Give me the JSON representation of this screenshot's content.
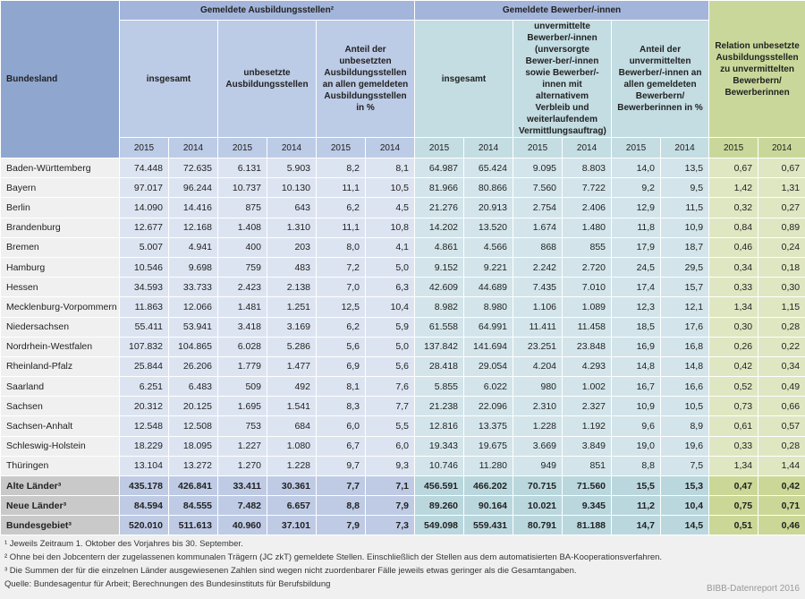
{
  "header": {
    "bundesland": "Bundesland",
    "group1": "Gemeldete Ausbildungsstellen²",
    "group2": "Gemeldete Bewerber/-innen",
    "group3": "Relation unbesetzte Ausbildungsstellen zu unvermittelten Bewerbern/ Bewerberinnen",
    "sub": [
      "insgesamt",
      "unbesetzte Ausbildungsstellen",
      "Anteil der unbesetzten Ausbildungsstellen an allen gemeldeten Ausbildungsstellen in %",
      "insgesamt",
      "unvermittelte Bewerber/-innen (unversorgte Bewer-ber/-innen sowie Bewerber/-innen mit alternativem Verbleib und weiterlaufendem Vermittlungsauftrag)",
      "Anteil der unvermittelten Bewerber/-innen an allen gemeldeten Bewerbern/ Bewerberinnen in %"
    ],
    "years": [
      "2015",
      "2014",
      "2015",
      "2014",
      "2015",
      "2014",
      "2015",
      "2014",
      "2015",
      "2014",
      "2015",
      "2014",
      "2015",
      "2014"
    ]
  },
  "rows": [
    {
      "name": "Baden-Württemberg",
      "v": [
        "74.448",
        "72.635",
        "6.131",
        "5.903",
        "8,2",
        "8,1",
        "64.987",
        "65.424",
        "9.095",
        "8.803",
        "14,0",
        "13,5",
        "0,67",
        "0,67"
      ]
    },
    {
      "name": "Bayern",
      "v": [
        "97.017",
        "96.244",
        "10.737",
        "10.130",
        "11,1",
        "10,5",
        "81.966",
        "80.866",
        "7.560",
        "7.722",
        "9,2",
        "9,5",
        "1,42",
        "1,31"
      ]
    },
    {
      "name": "Berlin",
      "v": [
        "14.090",
        "14.416",
        "875",
        "643",
        "6,2",
        "4,5",
        "21.276",
        "20.913",
        "2.754",
        "2.406",
        "12,9",
        "11,5",
        "0,32",
        "0,27"
      ]
    },
    {
      "name": "Brandenburg",
      "v": [
        "12.677",
        "12.168",
        "1.408",
        "1.310",
        "11,1",
        "10,8",
        "14.202",
        "13.520",
        "1.674",
        "1.480",
        "11,8",
        "10,9",
        "0,84",
        "0,89"
      ]
    },
    {
      "name": "Bremen",
      "v": [
        "5.007",
        "4.941",
        "400",
        "203",
        "8,0",
        "4,1",
        "4.861",
        "4.566",
        "868",
        "855",
        "17,9",
        "18,7",
        "0,46",
        "0,24"
      ]
    },
    {
      "name": "Hamburg",
      "v": [
        "10.546",
        "9.698",
        "759",
        "483",
        "7,2",
        "5,0",
        "9.152",
        "9.221",
        "2.242",
        "2.720",
        "24,5",
        "29,5",
        "0,34",
        "0,18"
      ]
    },
    {
      "name": "Hessen",
      "v": [
        "34.593",
        "33.733",
        "2.423",
        "2.138",
        "7,0",
        "6,3",
        "42.609",
        "44.689",
        "7.435",
        "7.010",
        "17,4",
        "15,7",
        "0,33",
        "0,30"
      ]
    },
    {
      "name": "Mecklenburg-Vorpommern",
      "v": [
        "11.863",
        "12.066",
        "1.481",
        "1.251",
        "12,5",
        "10,4",
        "8.982",
        "8.980",
        "1.106",
        "1.089",
        "12,3",
        "12,1",
        "1,34",
        "1,15"
      ]
    },
    {
      "name": "Niedersachsen",
      "v": [
        "55.411",
        "53.941",
        "3.418",
        "3.169",
        "6,2",
        "5,9",
        "61.558",
        "64.991",
        "11.411",
        "11.458",
        "18,5",
        "17,6",
        "0,30",
        "0,28"
      ]
    },
    {
      "name": "Nordrhein-Westfalen",
      "v": [
        "107.832",
        "104.865",
        "6.028",
        "5.286",
        "5,6",
        "5,0",
        "137.842",
        "141.694",
        "23.251",
        "23.848",
        "16,9",
        "16,8",
        "0,26",
        "0,22"
      ]
    },
    {
      "name": "Rheinland-Pfalz",
      "v": [
        "25.844",
        "26.206",
        "1.779",
        "1.477",
        "6,9",
        "5,6",
        "28.418",
        "29.054",
        "4.204",
        "4.293",
        "14,8",
        "14,8",
        "0,42",
        "0,34"
      ]
    },
    {
      "name": "Saarland",
      "v": [
        "6.251",
        "6.483",
        "509",
        "492",
        "8,1",
        "7,6",
        "5.855",
        "6.022",
        "980",
        "1.002",
        "16,7",
        "16,6",
        "0,52",
        "0,49"
      ]
    },
    {
      "name": "Sachsen",
      "v": [
        "20.312",
        "20.125",
        "1.695",
        "1.541",
        "8,3",
        "7,7",
        "21.238",
        "22.096",
        "2.310",
        "2.327",
        "10,9",
        "10,5",
        "0,73",
        "0,66"
      ]
    },
    {
      "name": "Sachsen-Anhalt",
      "v": [
        "12.548",
        "12.508",
        "753",
        "684",
        "6,0",
        "5,5",
        "12.816",
        "13.375",
        "1.228",
        "1.192",
        "9,6",
        "8,9",
        "0,61",
        "0,57"
      ]
    },
    {
      "name": "Schleswig-Holstein",
      "v": [
        "18.229",
        "18.095",
        "1.227",
        "1.080",
        "6,7",
        "6,0",
        "19.343",
        "19.675",
        "3.669",
        "3.849",
        "19,0",
        "19,6",
        "0,33",
        "0,28"
      ]
    },
    {
      "name": "Thüringen",
      "v": [
        "13.104",
        "13.272",
        "1.270",
        "1.228",
        "9,7",
        "9,3",
        "10.746",
        "11.280",
        "949",
        "851",
        "8,8",
        "7,5",
        "1,34",
        "1,44"
      ]
    }
  ],
  "summary": [
    {
      "name": "Alte Länder³",
      "v": [
        "435.178",
        "426.841",
        "33.411",
        "30.361",
        "7,7",
        "7,1",
        "456.591",
        "466.202",
        "70.715",
        "71.560",
        "15,5",
        "15,3",
        "0,47",
        "0,42"
      ]
    },
    {
      "name": "Neue Länder³",
      "v": [
        "84.594",
        "84.555",
        "7.482",
        "6.657",
        "8,8",
        "7,9",
        "89.260",
        "90.164",
        "10.021",
        "9.345",
        "11,2",
        "10,4",
        "0,75",
        "0,71"
      ]
    },
    {
      "name": "Bundesgebiet³",
      "v": [
        "520.010",
        "511.613",
        "40.960",
        "37.101",
        "7,9",
        "7,3",
        "549.098",
        "559.431",
        "80.791",
        "81.188",
        "14,7",
        "14,5",
        "0,51",
        "0,46"
      ]
    }
  ],
  "footer": {
    "notes": [
      "¹ Jeweils Zeitraum 1. Oktober des Vorjahres bis 30. September.",
      "² Ohne bei den Jobcentern der zugelassenen kommunalen Trägern (JC zkT) gemeldete Stellen. Einschließlich der Stellen aus dem automatisierten BA-Kooperationsverfahren.",
      "³ Die Summen der für die einzelnen Länder ausgewiesenen Zahlen sind wegen nicht zuordenbarer Fälle jeweils etwas geringer als die Gesamtangaben."
    ],
    "source": "Quelle: Bundesagentur für Arbeit; Berechnungen des Bundesinstituts für Berufsbildung",
    "credit": "BIBB-Datenreport 2016"
  }
}
